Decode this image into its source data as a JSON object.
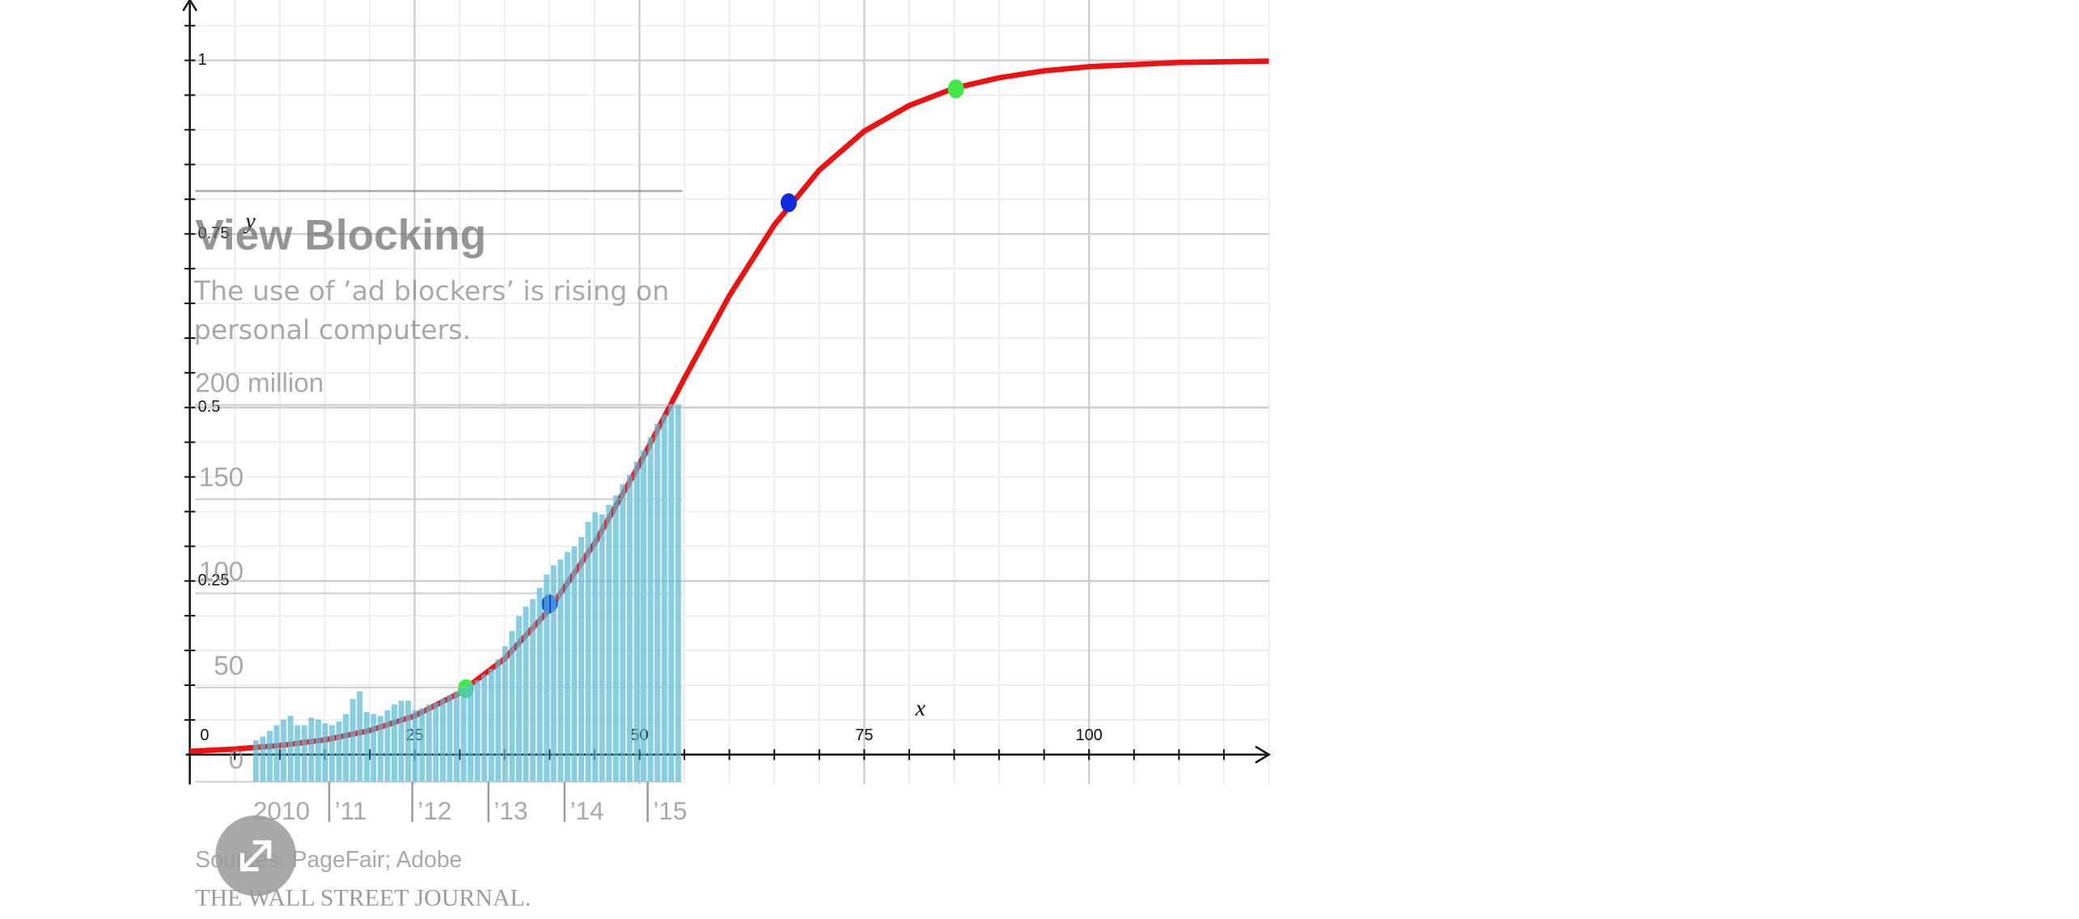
{
  "chart_data": [
    {
      "type": "bar",
      "title": "View Blocking",
      "subtitle": "The use of ’ad blockers’ is rising on personal computers.",
      "categories": [
        "2010",
        null,
        null,
        null,
        null,
        null,
        null,
        null,
        null,
        null,
        null,
        "’11",
        null,
        null,
        null,
        null,
        null,
        null,
        null,
        null,
        null,
        null,
        null,
        "’12",
        null,
        null,
        null,
        null,
        null,
        null,
        null,
        null,
        null,
        null,
        "’13",
        null,
        null,
        null,
        null,
        null,
        null,
        null,
        null,
        null,
        null,
        "’14",
        null,
        null,
        null,
        null,
        null,
        null,
        null,
        null,
        null,
        null,
        null,
        "’15",
        null,
        null,
        null,
        null
      ],
      "values": [
        22,
        24,
        27,
        30,
        33,
        35,
        30,
        30,
        34,
        33,
        31,
        30,
        32,
        36,
        44,
        48,
        37,
        36,
        35,
        38,
        41,
        43,
        43,
        38,
        39,
        41,
        42,
        44,
        46,
        48,
        50,
        52,
        54,
        57,
        60,
        65,
        72,
        80,
        88,
        93,
        97,
        103,
        110,
        115,
        118,
        122,
        125,
        130,
        138,
        143,
        142,
        147,
        152,
        158,
        163,
        170,
        176,
        183,
        190,
        195,
        200,
        200
      ],
      "color": "#5bbcd8",
      "ylim": [
        0,
        200
      ],
      "yticks": [
        0,
        50,
        100,
        150,
        {
          "value": 200,
          "label": "200 million"
        }
      ],
      "grid": true,
      "source": "Sources: PageFair; Adobe",
      "credit": "THE WALL STREET JOURNAL."
    },
    {
      "type": "line",
      "x": [
        0,
        5,
        10,
        15,
        20,
        25,
        30,
        35,
        40,
        45,
        50,
        55,
        60,
        65,
        70,
        75,
        80,
        85,
        90,
        95,
        100,
        105,
        110,
        115,
        120
      ],
      "series": [
        {
          "color": "#ee1111",
          "values": [
            0.0048,
            0.0079,
            0.013,
            0.0212,
            0.0346,
            0.0558,
            0.0887,
            0.138,
            0.209,
            0.304,
            0.418,
            0.542,
            0.661,
            0.763,
            0.842,
            0.898,
            0.935,
            0.96,
            0.975,
            0.985,
            0.991,
            0.994,
            0.997,
            0.998,
            0.999
          ]
        }
      ],
      "points": [
        {
          "x": 30.7,
          "y": 0.095,
          "color": "#44e844"
        },
        {
          "x": 40,
          "y": 0.217,
          "color": "#0a2ee0"
        },
        {
          "x": 66.6,
          "y": 0.795,
          "color": "#0a2ee0"
        },
        {
          "x": 85.2,
          "y": 0.959,
          "color": "#44e844"
        }
      ],
      "xlim": [
        0,
        120
      ],
      "ylim": [
        -0.043,
        1.087
      ],
      "xticks": [
        0,
        25,
        50,
        75,
        100
      ],
      "yticks": [
        0.25,
        0.5,
        0.75,
        1
      ],
      "xlabel": "x",
      "ylabel": "y",
      "grid": true,
      "minor_divisions": 5
    }
  ]
}
